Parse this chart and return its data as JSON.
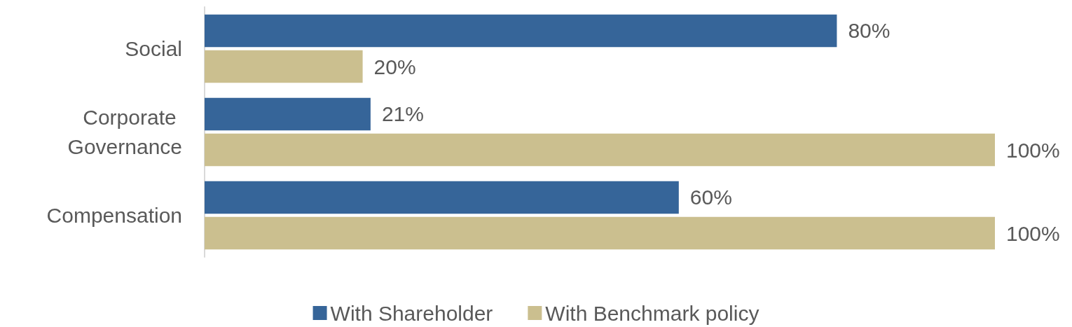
{
  "chart_data": {
    "type": "bar",
    "orientation": "horizontal",
    "categories": [
      "Social",
      "Corporate Governance",
      "Compensation"
    ],
    "series": [
      {
        "name": "With Shareholder",
        "color": "#366599",
        "values": [
          80,
          21,
          60
        ],
        "value_labels": [
          "80%",
          "21%",
          "60%"
        ]
      },
      {
        "name": "With Benchmark policy",
        "color": "#cbbf8f",
        "values": [
          20,
          100,
          100
        ],
        "value_labels": [
          "20%",
          "100%",
          "100%"
        ]
      }
    ],
    "legend": "bottom"
  }
}
